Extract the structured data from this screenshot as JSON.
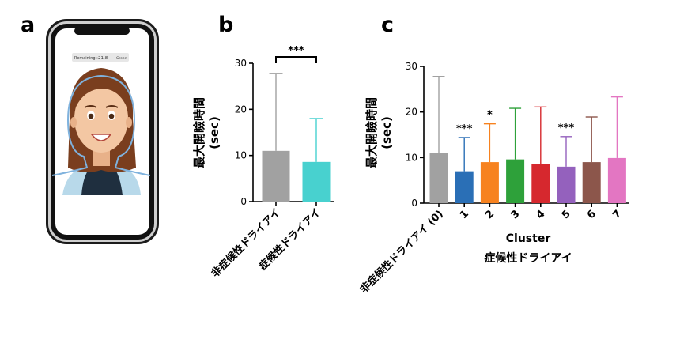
{
  "panels": {
    "a": "a",
    "b": "b",
    "c": "c"
  },
  "phone": {
    "status_label": "Remaining :",
    "status_value": "21.8",
    "status_unit": "Green"
  },
  "colors": {
    "gray": "#a1a1a1",
    "cyan": "#48d1cf",
    "c1": "#2a6fb6",
    "c2": "#f7821f",
    "c3": "#2ea13a",
    "c4": "#d6282e",
    "c5": "#9461bd",
    "c6": "#8c564b",
    "c7": "#e376c2"
  },
  "chart_data": [
    {
      "panel": "b",
      "type": "bar",
      "ylabel": "最大開瞼時間\n(sec)",
      "ylabel_line1": "最大開瞼時間",
      "ylabel_line2": "(sec)",
      "ylim": [
        0,
        30
      ],
      "yticks": [
        "0",
        "10",
        "20",
        "30"
      ],
      "categories": [
        "非症候性ドライアイ",
        "症候性ドライアイ"
      ],
      "values": [
        11.0,
        8.6
      ],
      "errors_upper": [
        27.8,
        18.0
      ],
      "colors": [
        "#a1a1a1",
        "#48d1cf"
      ],
      "significance": "***"
    },
    {
      "panel": "c",
      "type": "bar",
      "ylabel_line1": "最大開瞼時間",
      "ylabel_line2": "(sec)",
      "ylim": [
        0,
        30
      ],
      "yticks": [
        "0",
        "10",
        "20",
        "30"
      ],
      "categories": [
        "非症候性ドライアイ (0)",
        "1",
        "2",
        "3",
        "4",
        "5",
        "6",
        "7"
      ],
      "values": [
        11.0,
        7.0,
        9.0,
        9.6,
        8.5,
        8.0,
        9.0,
        9.9
      ],
      "errors_upper": [
        27.8,
        14.4,
        17.4,
        20.8,
        21.1,
        14.6,
        18.9,
        23.3
      ],
      "colors": [
        "#a1a1a1",
        "#2a6fb6",
        "#f7821f",
        "#2ea13a",
        "#d6282e",
        "#9461bd",
        "#8c564b",
        "#e376c2"
      ],
      "significance": [
        "",
        "***",
        "*",
        "",
        "",
        "***",
        "",
        ""
      ],
      "xlabel": "Cluster",
      "xlabel2": "症候性ドライアイ"
    }
  ]
}
